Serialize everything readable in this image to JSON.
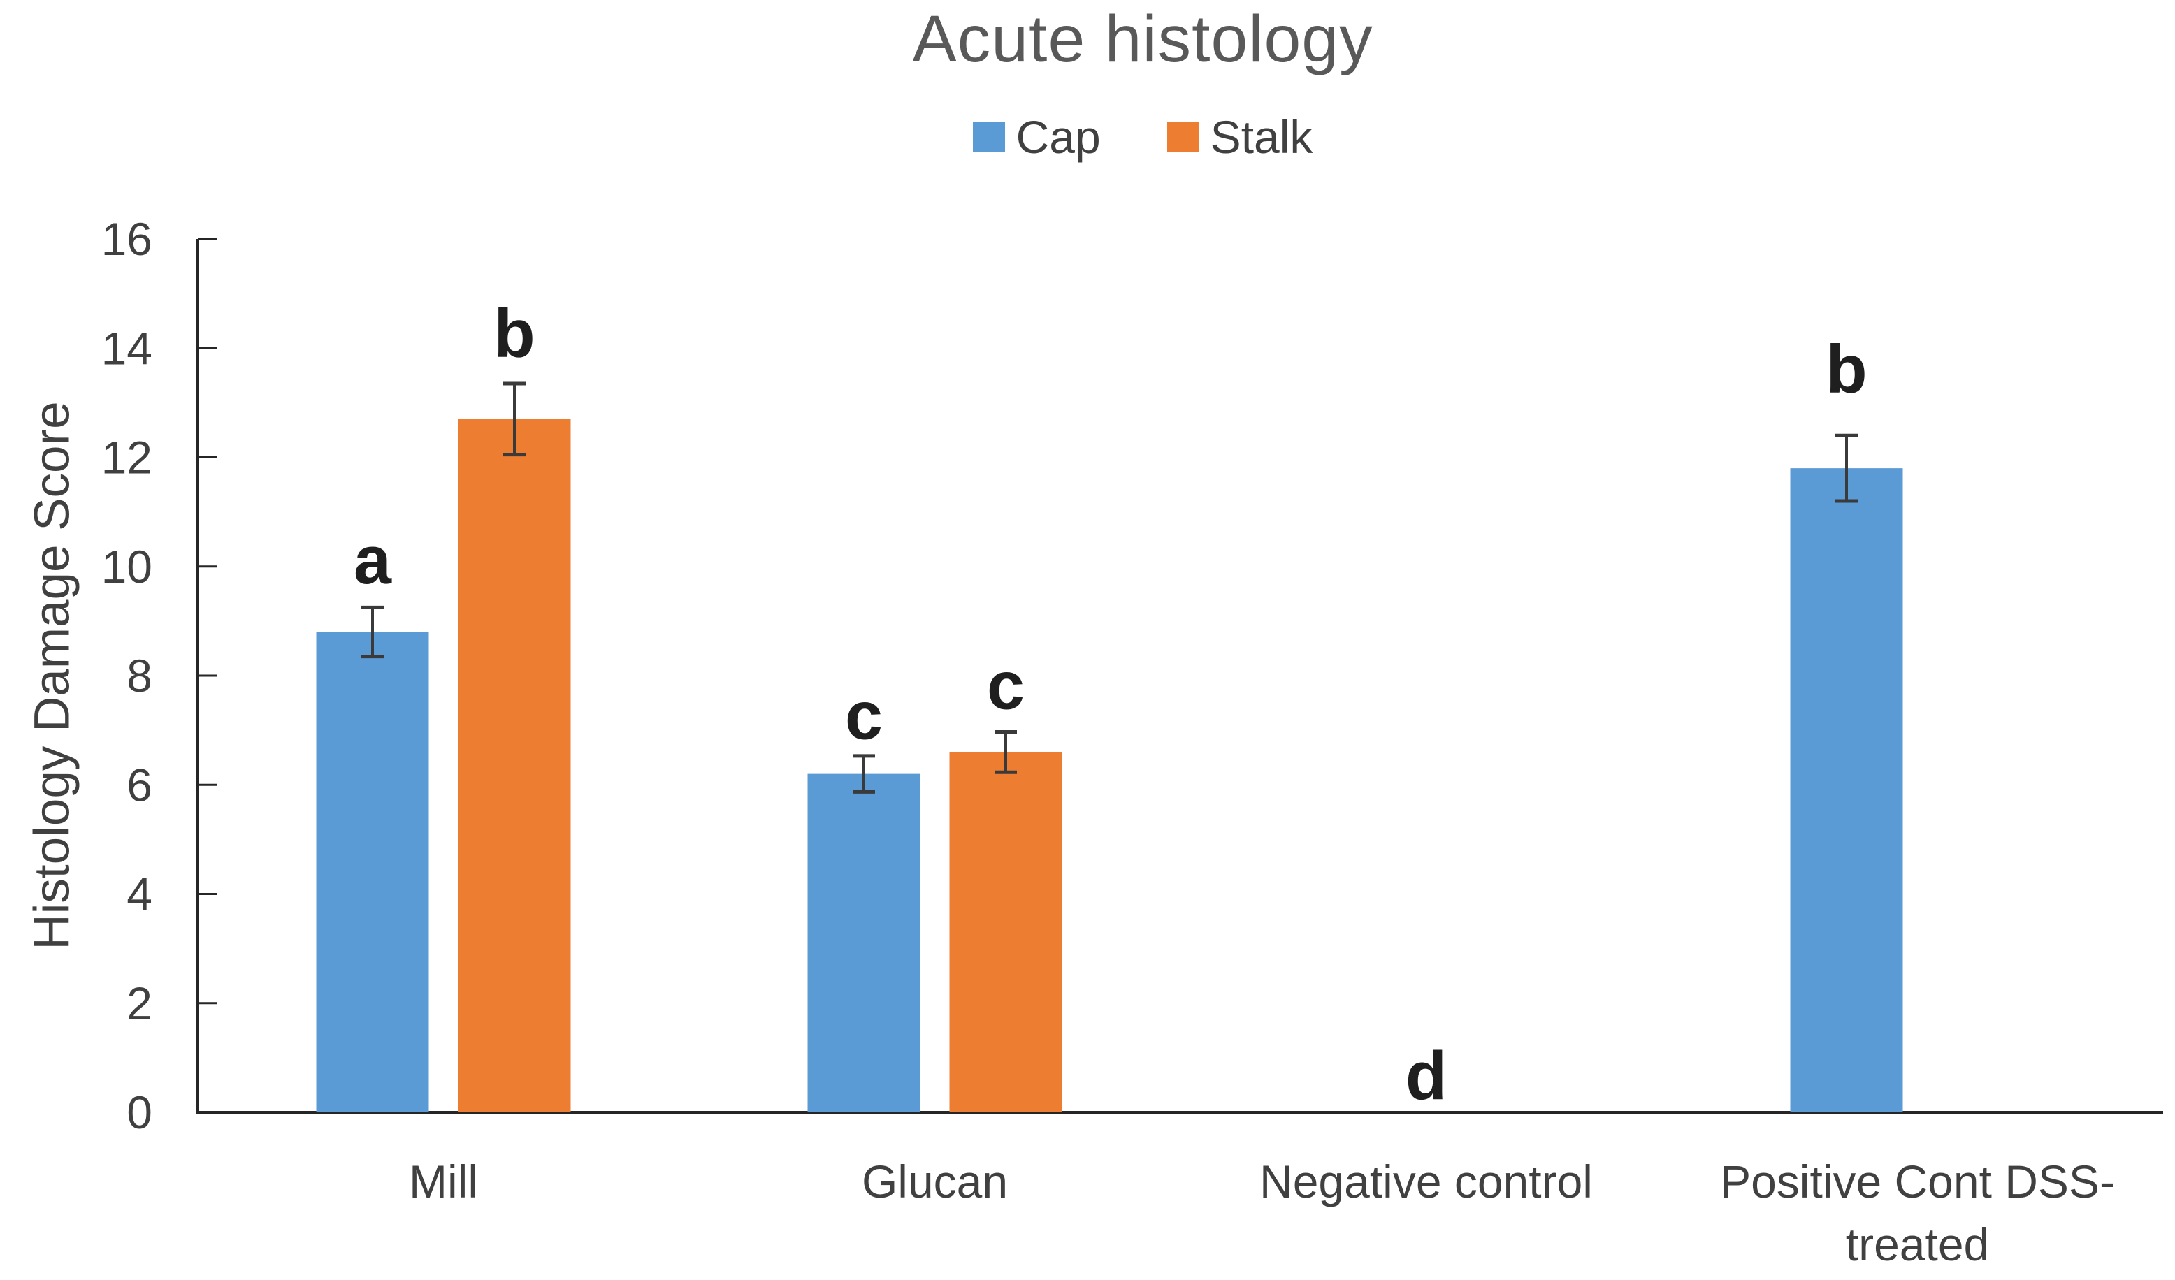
{
  "chart_data": {
    "type": "bar",
    "title": "Acute histology",
    "ylabel": "Histology Damage Score",
    "xlabel": "",
    "ylim": [
      0,
      16
    ],
    "ytick_step": 2,
    "grid": false,
    "legend_position": "top-center",
    "categories": [
      "Mill",
      "Glucan",
      "Negative control",
      "Positive Cont DSS-treated"
    ],
    "category_label_lines": [
      [
        "Mill"
      ],
      [
        "Glucan"
      ],
      [
        "Negative control"
      ],
      [
        "Positive Cont DSS-",
        "treated"
      ]
    ],
    "series": [
      {
        "name": "Cap",
        "color": "#5B9BD5",
        "values": [
          8.8,
          6.2,
          0,
          11.8
        ],
        "errors": [
          0.45,
          0.33,
          0,
          0.6
        ]
      },
      {
        "name": "Stalk",
        "color": "#ED7D31",
        "values": [
          12.7,
          6.6,
          0,
          0
        ],
        "errors": [
          0.65,
          0.37,
          0,
          0
        ]
      }
    ],
    "annotations": [
      {
        "text": "a",
        "category": 0,
        "series": 0,
        "y": 10.1
      },
      {
        "text": "b",
        "category": 0,
        "series": 1,
        "y": 14.25
      },
      {
        "text": "c",
        "category": 1,
        "series": 0,
        "y": 7.25
      },
      {
        "text": "c",
        "category": 1,
        "series": 1,
        "y": 7.8
      },
      {
        "text": "d",
        "category": 2,
        "series": null,
        "y": 0.65
      },
      {
        "text": "b",
        "category": 3,
        "series": 0,
        "y": 13.6
      }
    ]
  },
  "colors": {
    "axis_line": "#262626",
    "tick_text": "#404040",
    "title_text": "#595959",
    "error_bar": "#3a3a3a",
    "annotation_text": "#1f1f1f"
  }
}
